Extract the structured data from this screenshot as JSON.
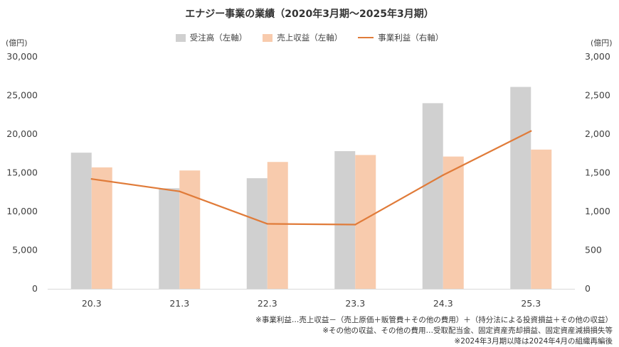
{
  "chart_data": {
    "type": "bar",
    "title": "エナジー事業の業績（2020年3月期〜2025年3月期）",
    "left_unit": "(億円)",
    "right_unit": "(億円)",
    "categories": [
      "20.3",
      "21.3",
      "22.3",
      "23.3",
      "24.3",
      "25.3"
    ],
    "series": [
      {
        "name": "受注高（左軸）",
        "type": "bar",
        "axis": "left",
        "color": "#d0d0d0",
        "values": [
          17600,
          13000,
          14300,
          17800,
          24000,
          26100
        ]
      },
      {
        "name": "売上収益（左軸）",
        "type": "bar",
        "axis": "left",
        "color": "#f8cbad",
        "values": [
          15700,
          15300,
          16400,
          17300,
          17100,
          18000
        ]
      },
      {
        "name": "事業利益（右軸）",
        "type": "line",
        "axis": "right",
        "color": "#e07b39",
        "values": [
          1420,
          1260,
          840,
          830,
          1470,
          2040
        ]
      }
    ],
    "ylim_left": [
      0,
      30000
    ],
    "ylim_right": [
      0,
      3000
    ],
    "yticks_left": [
      "0",
      "5,000",
      "10,000",
      "15,000",
      "20,000",
      "25,000",
      "30,000"
    ],
    "yticks_right": [
      "0",
      "500",
      "1,000",
      "1,500",
      "2,000",
      "2,500",
      "3,000"
    ],
    "grid": false,
    "legend_position": "top"
  },
  "notes": [
    "※事業利益…売上収益－（売上原価＋販管費＋その他の費用）＋（持分法による投資損益＋その他の収益）",
    "※その他の収益、その他の費用…受取配当金、固定資産売却損益、固定資産減損損失等",
    "※2024年3月期以降は2024年4月の組織再編後"
  ]
}
